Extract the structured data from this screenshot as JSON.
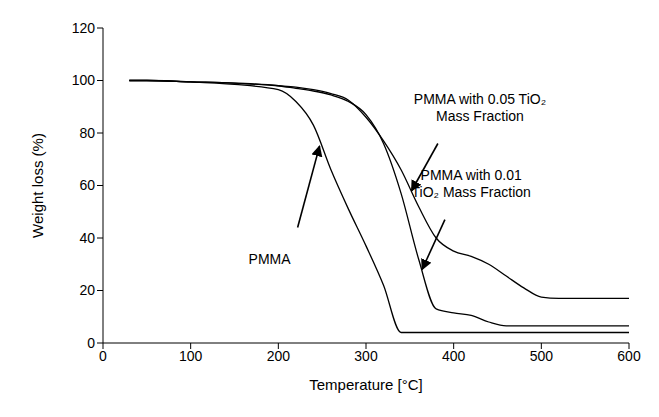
{
  "chart_data": {
    "type": "line",
    "x_label": "Temperature [°C]",
    "y_label": "Weight loss (%)",
    "x": [
      30,
      50,
      100,
      150,
      200,
      220,
      240,
      260,
      280,
      300,
      320,
      340,
      360,
      380,
      400,
      420,
      440,
      460,
      480,
      500,
      520,
      550,
      600
    ],
    "series": [
      {
        "name": "PMMA",
        "color": "#000000",
        "values": [
          100,
          100,
          99.5,
          98.5,
          96.5,
          92,
          83,
          66,
          51,
          37,
          22,
          4,
          4,
          4,
          4,
          4,
          4,
          4,
          4,
          4,
          4,
          4,
          4
        ]
      },
      {
        "name": "PMMA with 0.01 TiO₂ Mass Fraction",
        "color": "#000000",
        "values": [
          100,
          100,
          99.5,
          99,
          98,
          97,
          96,
          94.5,
          92,
          87,
          76,
          57,
          32,
          13,
          11.5,
          10.5,
          8,
          6.5,
          6.5,
          6.5,
          6.5,
          6.5,
          6.5
        ]
      },
      {
        "name": "PMMA with 0.05 TiO₂ Mass Fraction",
        "color": "#000000",
        "values": [
          100,
          100,
          99.5,
          99,
          98,
          97.5,
          96.5,
          95,
          92.5,
          86,
          77,
          66,
          52,
          40,
          35,
          33,
          30,
          25.5,
          21,
          17.5,
          17,
          17,
          17
        ]
      }
    ],
    "annotations": [
      {
        "text": "PMMA"
      },
      {
        "text": "PMMA with 0.01\nTiO₂ Mass Fraction"
      },
      {
        "text": "PMMA with 0.05 TiO₂\nMass Fraction"
      }
    ],
    "xlim": [
      0,
      600
    ],
    "ylim": [
      0,
      120
    ],
    "xticks": [
      0,
      100,
      200,
      300,
      400,
      500,
      600
    ],
    "yticks": [
      0,
      20,
      40,
      60,
      80,
      100,
      120
    ],
    "grid": false
  }
}
